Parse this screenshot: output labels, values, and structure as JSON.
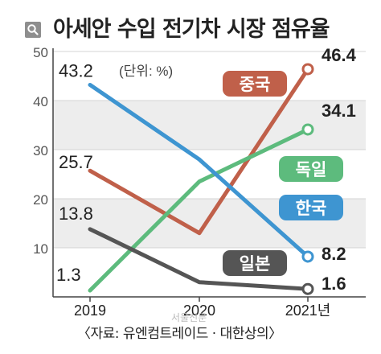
{
  "title": "아세안 수입 전기차 시장 점유율",
  "source": "〈자료: 유엔컴트레이드 · 대한상의〉",
  "watermark": "서울신문",
  "chart_data": {
    "type": "line",
    "unit_label": "(단위: %)",
    "categories": [
      "2019",
      "2020",
      "2021년"
    ],
    "ylim": [
      0,
      50
    ],
    "yticks": [
      10,
      20,
      30,
      40,
      50
    ],
    "grid": "alternating horizontal bands",
    "series": [
      {
        "name": "중국",
        "values": [
          25.7,
          13,
          46.4
        ],
        "color": "#c0604a",
        "value_labels": [
          "25.7",
          "",
          "46.4"
        ]
      },
      {
        "name": "독일",
        "values": [
          1.3,
          23.5,
          34.1
        ],
        "color": "#5dbb7d",
        "value_labels": [
          "1.3",
          "",
          "34.1"
        ]
      },
      {
        "name": "한국",
        "values": [
          43.2,
          28,
          8.2
        ],
        "color": "#3e95d1",
        "value_labels": [
          "43.2",
          "",
          "8.2"
        ]
      },
      {
        "name": "일본",
        "values": [
          13.8,
          3,
          1.6
        ],
        "color": "#555555",
        "value_labels": [
          "13.8",
          "",
          "1.6"
        ]
      }
    ]
  }
}
